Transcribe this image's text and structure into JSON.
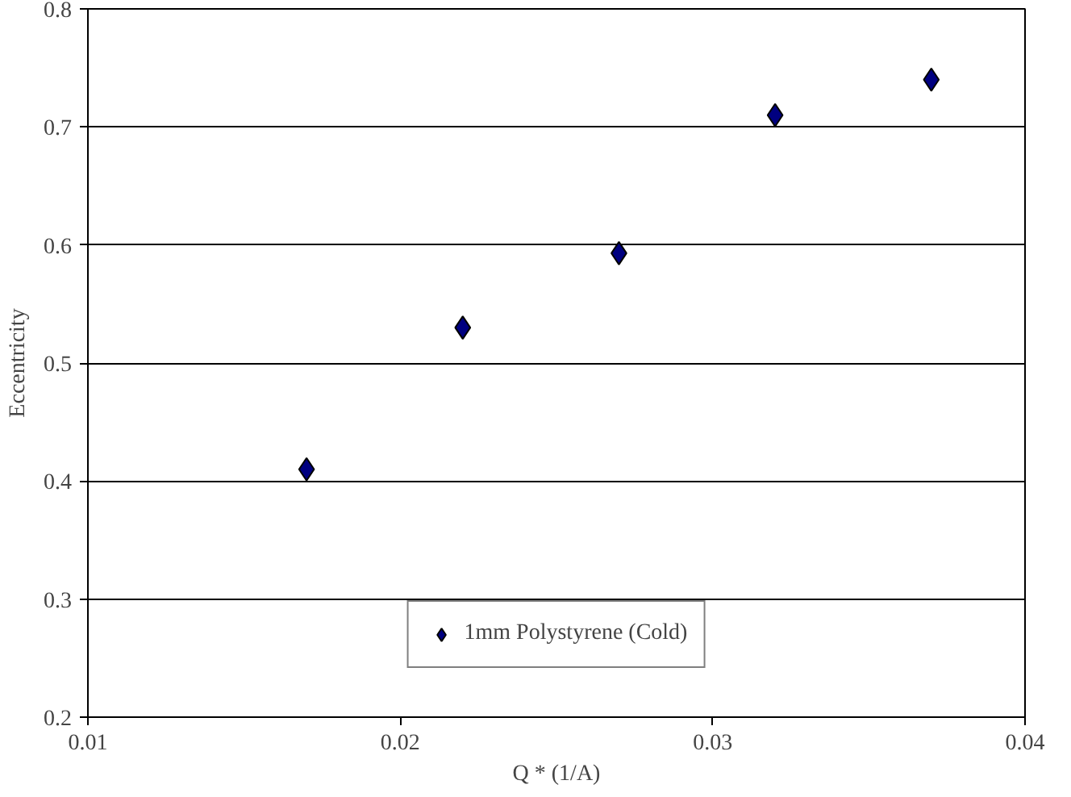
{
  "chart_data": {
    "type": "scatter",
    "xlabel": "Q * (1/A)",
    "ylabel": "Eccentricity",
    "x": [
      0.017,
      0.022,
      0.027,
      0.032,
      0.037
    ],
    "series": [
      {
        "name": "1mm Polystyrene (Cold)",
        "color": "#000080",
        "values": [
          0.41,
          0.53,
          0.593,
          0.71,
          0.74
        ]
      }
    ],
    "xlim": [
      0.01,
      0.04
    ],
    "xticks": [
      0.01,
      0.02,
      0.03,
      0.04
    ],
    "ylim": [
      0.2,
      0.8
    ],
    "yticks": [
      0.2,
      0.3,
      0.4,
      0.5,
      0.6,
      0.7,
      0.8
    ],
    "grid": "y",
    "legend": "bottom",
    "marker": "diamond"
  }
}
